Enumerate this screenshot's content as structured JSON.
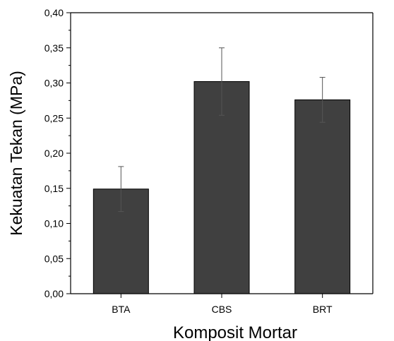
{
  "chart_data": {
    "type": "bar",
    "categories": [
      "BTA",
      "CBS",
      "BRT"
    ],
    "values": [
      0.149,
      0.302,
      0.276
    ],
    "errors": [
      0.032,
      0.048,
      0.032
    ],
    "xlabel": "Komposit Mortar",
    "ylabel": "Kekuatan Tekan (MPa)",
    "ylim": [
      0,
      0.4
    ],
    "yticks": [
      0.0,
      0.05,
      0.1,
      0.15,
      0.2,
      0.25,
      0.3,
      0.35,
      0.4
    ],
    "ytick_labels": [
      "0,00",
      "0,05",
      "0,10",
      "0,15",
      "0,20",
      "0,25",
      "0,30",
      "0,35",
      "0,40"
    ],
    "grid": false,
    "bar_color": "#404040"
  }
}
